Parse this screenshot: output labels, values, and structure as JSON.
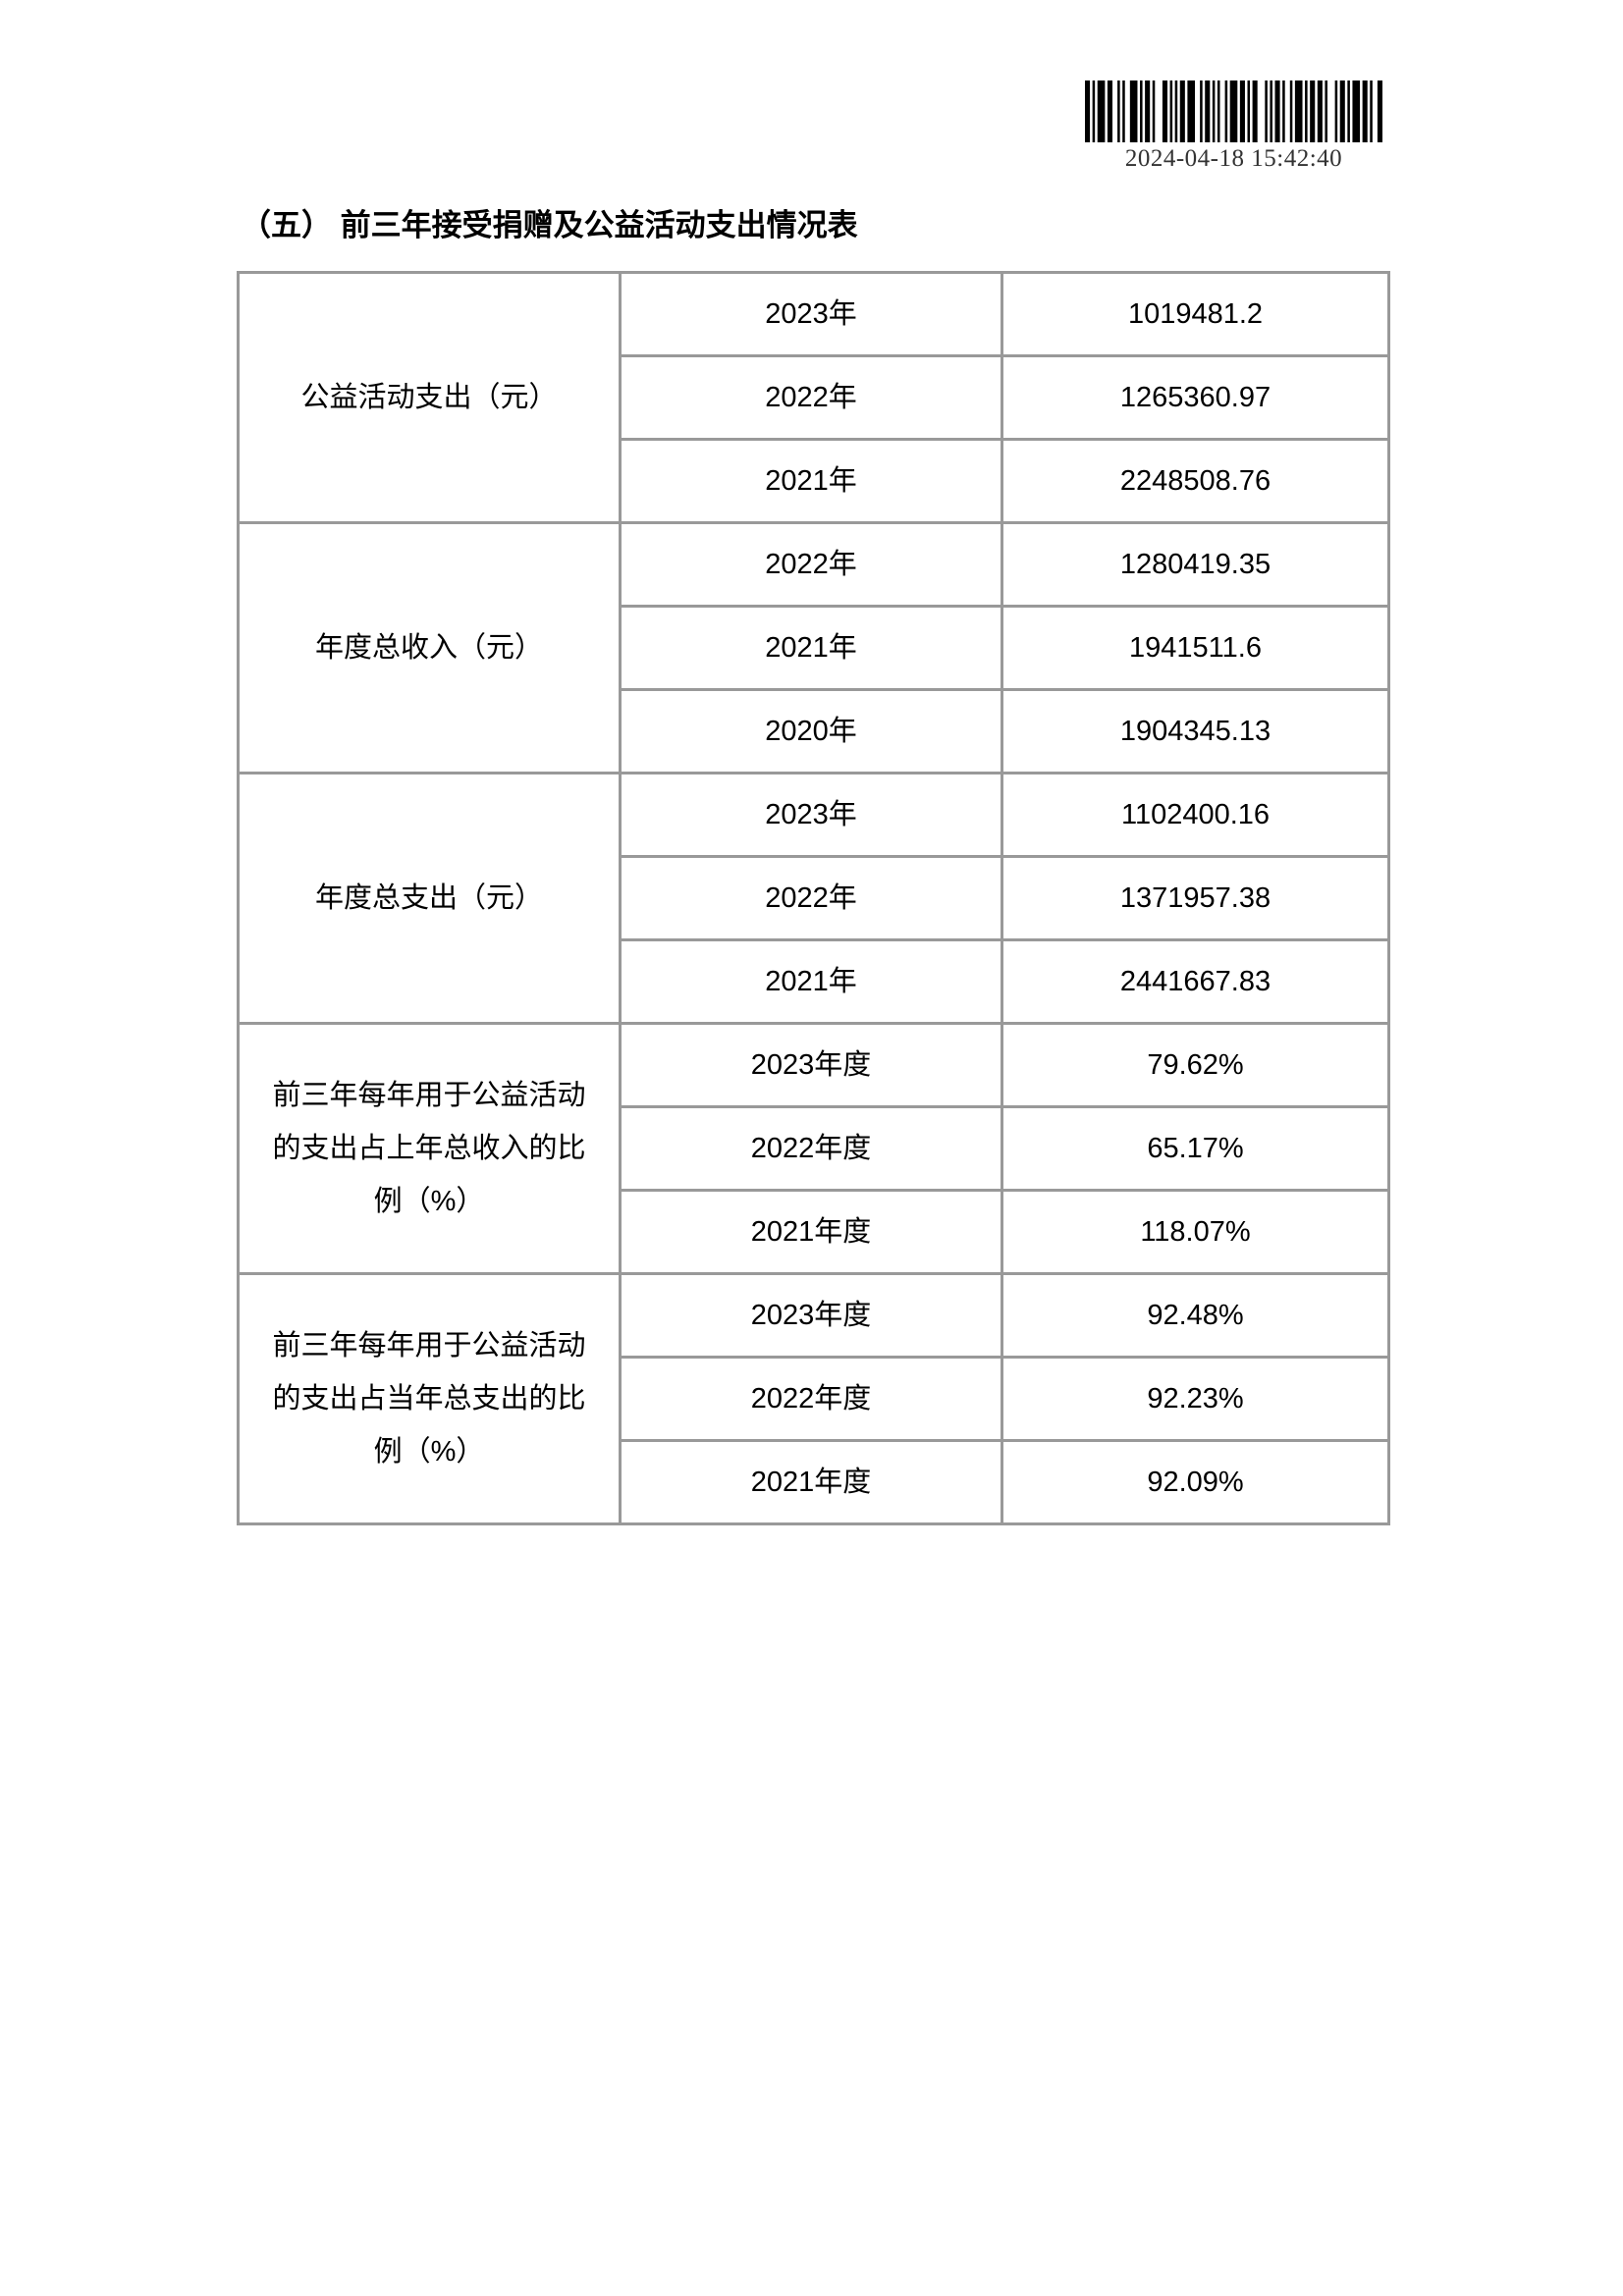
{
  "colors": {
    "table_border": "#999999",
    "text": "#000000",
    "stamp_text": "#333333"
  },
  "stamp": {
    "timestamp": "2024-04-18 15:42:40"
  },
  "heading": {
    "text": "（五） 前三年接受捐赠及公益活动支出情况表"
  },
  "table": {
    "groups": [
      {
        "label": "公益活动支出（元）",
        "rows": [
          {
            "period": "2023年",
            "value": "1019481.2"
          },
          {
            "period": "2022年",
            "value": "1265360.97"
          },
          {
            "period": "2021年",
            "value": "2248508.76"
          }
        ]
      },
      {
        "label": "年度总收入（元）",
        "rows": [
          {
            "period": "2022年",
            "value": "1280419.35"
          },
          {
            "period": "2021年",
            "value": "1941511.6"
          },
          {
            "period": "2020年",
            "value": "1904345.13"
          }
        ]
      },
      {
        "label": "年度总支出（元）",
        "rows": [
          {
            "period": "2023年",
            "value": "1102400.16"
          },
          {
            "period": "2022年",
            "value": "1371957.38"
          },
          {
            "period": "2021年",
            "value": "2441667.83"
          }
        ]
      },
      {
        "label": "前三年每年用于公益活动的支出占上年总收入的比例（%）",
        "rows": [
          {
            "period": "2023年度",
            "value": "79.62%"
          },
          {
            "period": "2022年度",
            "value": "65.17%"
          },
          {
            "period": "2021年度",
            "value": "118.07%"
          }
        ]
      },
      {
        "label": "前三年每年用于公益活动的支出占当年总支出的比例（%）",
        "rows": [
          {
            "period": "2023年度",
            "value": "92.48%"
          },
          {
            "period": "2022年度",
            "value": "92.23%"
          },
          {
            "period": "2021年度",
            "value": "92.09%"
          }
        ]
      }
    ]
  }
}
